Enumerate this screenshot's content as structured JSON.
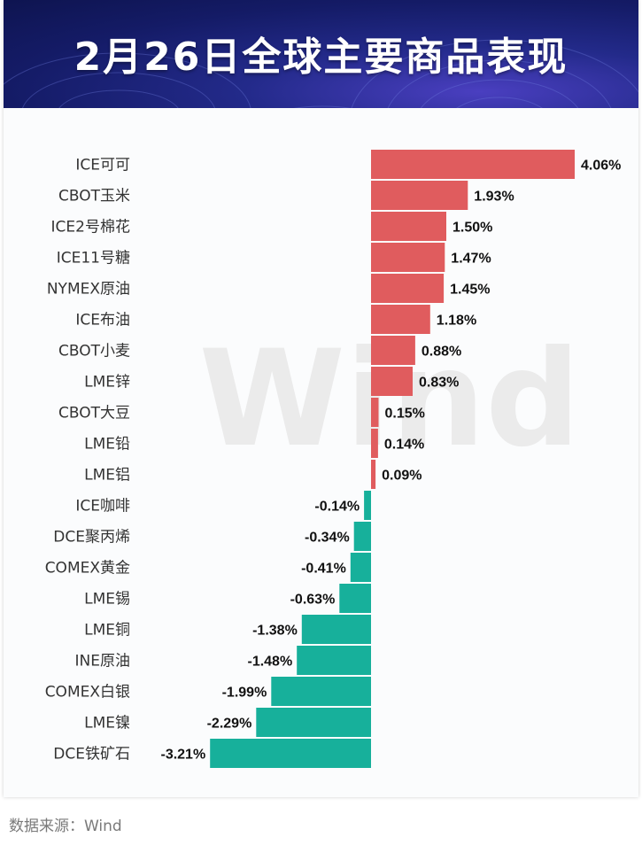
{
  "header": {
    "title": "2月26日全球主要商品表现"
  },
  "watermark": "Wind",
  "source": "数据来源：Wind",
  "colors": {
    "positive": "#e05c5e",
    "negative": "#17b09b",
    "banner": "#141b66"
  },
  "chart_data": {
    "type": "bar",
    "orientation": "horizontal",
    "categories": [
      "ICE可可",
      "CBOT玉米",
      "ICE2号棉花",
      "ICE11号糖",
      "NYMEX原油",
      "ICE布油",
      "CBOT小麦",
      "LME锌",
      "CBOT大豆",
      "LME铅",
      "LME铝",
      "ICE咖啡",
      "DCE聚丙烯",
      "COMEX黄金",
      "LME锡",
      "LME铜",
      "INE原油",
      "COMEX白银",
      "LME镍",
      "DCE铁矿石"
    ],
    "values": [
      4.06,
      1.93,
      1.5,
      1.47,
      1.45,
      1.18,
      0.88,
      0.83,
      0.15,
      0.14,
      0.09,
      -0.14,
      -0.34,
      -0.41,
      -0.63,
      -1.38,
      -1.48,
      -1.99,
      -2.29,
      -3.21
    ],
    "value_labels": [
      "4.06%",
      "1.93%",
      "1.50%",
      "1.47%",
      "1.45%",
      "1.18%",
      "0.88%",
      "0.83%",
      "0.15%",
      "0.14%",
      "0.09%",
      "-0.14%",
      "-0.34%",
      "-0.41%",
      "-0.63%",
      "-1.38%",
      "-1.48%",
      "-1.99%",
      "-2.29%",
      "-3.21%"
    ],
    "unit": "%",
    "grid": false,
    "legend": "none"
  }
}
